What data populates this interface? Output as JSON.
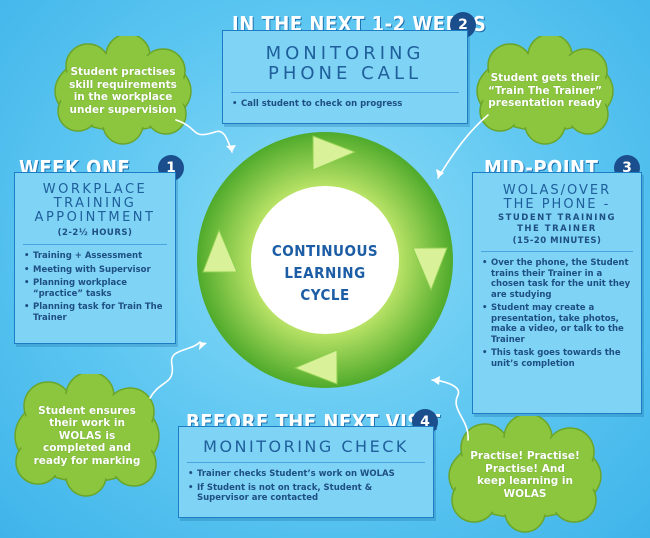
{
  "center": {
    "line1": "CONTINUOUS",
    "line2": "LEARNING",
    "line3": "CYCLE"
  },
  "panels": {
    "week_one": {
      "title": "WEEK ONE",
      "badge": "1",
      "subtitle": [
        "WORKPLACE",
        "TRAINING",
        "APPOINTMENT"
      ],
      "note": "(2-2½ HOURS)",
      "bullets": [
        "Training + Assessment",
        "Meeting with Supervisor",
        "Planning workplace “practice” tasks",
        "Planning task for Train The Trainer"
      ]
    },
    "next_weeks": {
      "title": "IN THE NEXT 1-2 WEEKS",
      "badge": "2",
      "subtitle": [
        "MONITORING",
        "PHONE CALL"
      ],
      "bullets": [
        "Call student to check on progress"
      ]
    },
    "mid_point": {
      "title": "MID-POINT",
      "badge": "3",
      "subtitle": [
        "WOLAS/OVER",
        "THE PHONE -"
      ],
      "note_lines": [
        "STUDENT TRAINING",
        "THE TRAINER"
      ],
      "note2": "(15-20 MINUTES)",
      "bullets": [
        "Over the phone, the Student trains their Trainer in a chosen task for the unit they are studying",
        "Student may create a presentation, take photos, make a video, or talk to the Trainer",
        "This task goes towards the unit’s completion"
      ]
    },
    "before_visit": {
      "title": "BEFORE THE NEXT VISIT",
      "badge": "4",
      "subtitle": [
        "MONITORING CHECK"
      ],
      "bullets": [
        "Trainer checks Student’s work on WOLAS",
        "If Student is not on track, Student & Supervisor are contacted"
      ]
    }
  },
  "clouds": {
    "top_left": "Student practises skill requirements in the workplace under supervision",
    "top_right": "Student gets their “Train The Trainer” presentation ready",
    "bottom_left": "Student ensures their work in WOLAS is completed and ready for marking",
    "bottom_right": "Practise! Practise! Practise! And keep learning in WOLAS"
  },
  "colors": {
    "background": "#5cc6f1",
    "panel": "#7fd3f4",
    "panel_border": "#1c7cc4",
    "badge": "#1b4e8c",
    "cloud": "#8cc63f",
    "cycle": "#7cc242"
  }
}
